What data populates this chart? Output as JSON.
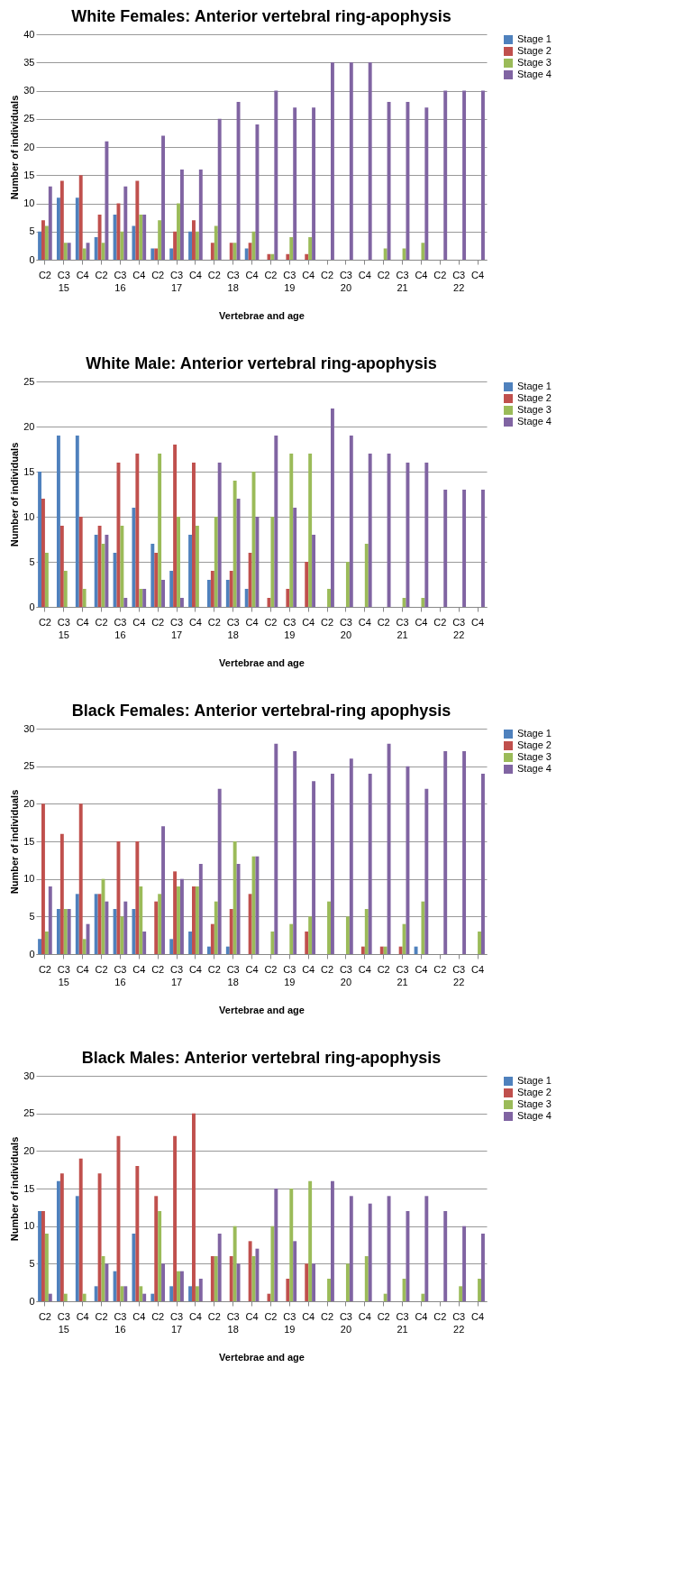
{
  "chart_data": [
    {
      "type": "bar",
      "title": "White Females: Anterior vertebral ring-apophysis",
      "xlabel": "Vertebrae and age",
      "ylabel": "Number of individuals",
      "categories": [
        "C2",
        "C3",
        "C4",
        "C2",
        "C3",
        "C4",
        "C2",
        "C3",
        "C4",
        "C2",
        "C3",
        "C4",
        "C2",
        "C3",
        "C4",
        "C2",
        "C3",
        "C4",
        "C2",
        "C3",
        "C4",
        "C2",
        "C3",
        "C4"
      ],
      "annotations": [
        "15",
        "16",
        "17",
        "18",
        "19",
        "20",
        "21",
        "22"
      ],
      "ylim": [
        0,
        40
      ],
      "yticks": [
        0,
        5,
        10,
        15,
        20,
        25,
        30,
        35,
        40
      ],
      "grid": "y",
      "legend": "right",
      "series": [
        {
          "name": "Stage 1",
          "color": "#4f81bd",
          "values": [
            5,
            11,
            11,
            4,
            8,
            6,
            2,
            2,
            5,
            null,
            null,
            2,
            null,
            null,
            null,
            null,
            null,
            null,
            null,
            null,
            null,
            null,
            null,
            null
          ]
        },
        {
          "name": "Stage 2",
          "color": "#c0504d",
          "values": [
            7,
            14,
            15,
            8,
            10,
            14,
            2,
            5,
            7,
            3,
            3,
            3,
            1,
            1,
            1,
            null,
            null,
            null,
            null,
            null,
            null,
            null,
            null,
            null
          ]
        },
        {
          "name": "Stage 3",
          "color": "#9bbb59",
          "values": [
            6,
            3,
            2,
            3,
            5,
            8,
            7,
            10,
            5,
            6,
            3,
            5,
            1,
            4,
            4,
            null,
            null,
            null,
            2,
            2,
            3,
            null,
            null,
            null
          ]
        },
        {
          "name": "Stage 4",
          "color": "#8064a2",
          "values": [
            13,
            3,
            3,
            21,
            13,
            8,
            22,
            16,
            16,
            25,
            28,
            24,
            30,
            27,
            27,
            35,
            35,
            35,
            28,
            28,
            27,
            30,
            30,
            30
          ]
        }
      ]
    },
    {
      "type": "bar",
      "title": "White Male: Anterior vertebral ring-apophysis",
      "xlabel": "Vertebrae and age",
      "ylabel": "Number of individuals",
      "categories": [
        "C2",
        "C3",
        "C4",
        "C2",
        "C3",
        "C4",
        "C2",
        "C3",
        "C4",
        "C2",
        "C3",
        "C4",
        "C2",
        "C3",
        "C4",
        "C2",
        "C3",
        "C4",
        "C2",
        "C3",
        "C4",
        "C2",
        "C3",
        "C4"
      ],
      "annotations": [
        "15",
        "16",
        "17",
        "18",
        "19",
        "20",
        "21",
        "22"
      ],
      "ylim": [
        0,
        25
      ],
      "yticks": [
        0,
        5,
        10,
        15,
        20,
        25
      ],
      "grid": "y",
      "legend": "right",
      "series": [
        {
          "name": "Stage 1",
          "color": "#4f81bd",
          "values": [
            15,
            19,
            19,
            8,
            6,
            11,
            7,
            4,
            8,
            3,
            3,
            2,
            null,
            null,
            null,
            null,
            null,
            null,
            null,
            null,
            null,
            null,
            null,
            null
          ]
        },
        {
          "name": "Stage 2",
          "color": "#c0504d",
          "values": [
            12,
            9,
            10,
            9,
            16,
            17,
            6,
            18,
            16,
            4,
            4,
            6,
            1,
            2,
            5,
            null,
            null,
            null,
            null,
            null,
            null,
            null,
            null,
            null
          ]
        },
        {
          "name": "Stage 3",
          "color": "#9bbb59",
          "values": [
            6,
            4,
            2,
            7,
            9,
            2,
            17,
            10,
            9,
            10,
            14,
            15,
            10,
            17,
            17,
            2,
            5,
            7,
            null,
            1,
            1,
            null,
            null,
            null
          ]
        },
        {
          "name": "Stage 4",
          "color": "#8064a2",
          "values": [
            null,
            null,
            null,
            8,
            1,
            2,
            3,
            1,
            null,
            16,
            12,
            10,
            19,
            11,
            8,
            22,
            19,
            17,
            17,
            16,
            16,
            13,
            13,
            13
          ]
        }
      ]
    },
    {
      "type": "bar",
      "title": "Black Females: Anterior vertebral-ring apophysis",
      "xlabel": "Vertebrae and age",
      "ylabel": "Number of individuals",
      "categories": [
        "C2",
        "C3",
        "C4",
        "C2",
        "C3",
        "C4",
        "C2",
        "C3",
        "C4",
        "C2",
        "C3",
        "C4",
        "C2",
        "C3",
        "C4",
        "C2",
        "C3",
        "C4",
        "C2",
        "C3",
        "C4",
        "C2",
        "C3",
        "C4"
      ],
      "annotations": [
        "15",
        "16",
        "17",
        "18",
        "19",
        "20",
        "21",
        "22"
      ],
      "ylim": [
        0,
        30
      ],
      "yticks": [
        0,
        5,
        10,
        15,
        20,
        25,
        30
      ],
      "grid": "y",
      "legend": "right",
      "series": [
        {
          "name": "Stage 1",
          "color": "#4f81bd",
          "values": [
            2,
            6,
            8,
            8,
            6,
            6,
            null,
            2,
            3,
            1,
            1,
            null,
            null,
            null,
            null,
            null,
            null,
            null,
            null,
            null,
            1,
            null,
            null,
            null
          ]
        },
        {
          "name": "Stage 2",
          "color": "#c0504d",
          "values": [
            20,
            16,
            20,
            8,
            15,
            15,
            7,
            11,
            9,
            4,
            6,
            8,
            null,
            null,
            3,
            null,
            null,
            1,
            1,
            1,
            null,
            null,
            null,
            null
          ]
        },
        {
          "name": "Stage 3",
          "color": "#9bbb59",
          "values": [
            3,
            6,
            2,
            10,
            5,
            9,
            8,
            9,
            9,
            7,
            15,
            13,
            3,
            4,
            5,
            7,
            5,
            6,
            1,
            4,
            7,
            null,
            null,
            3
          ]
        },
        {
          "name": "Stage 4",
          "color": "#8064a2",
          "values": [
            9,
            6,
            4,
            7,
            7,
            3,
            17,
            10,
            12,
            22,
            12,
            13,
            28,
            27,
            23,
            24,
            26,
            24,
            28,
            25,
            22,
            27,
            27,
            24
          ]
        }
      ]
    },
    {
      "type": "bar",
      "title": "Black Males: Anterior vertebral ring-apophysis",
      "xlabel": "Vertebrae and age",
      "ylabel": "Number of individuals",
      "categories": [
        "C2",
        "C3",
        "C4",
        "C2",
        "C3",
        "C4",
        "C2",
        "C3",
        "C4",
        "C2",
        "C3",
        "C4",
        "C2",
        "C3",
        "C4",
        "C2",
        "C3",
        "C4",
        "C2",
        "C3",
        "C4",
        "C2",
        "C3",
        "C4"
      ],
      "annotations": [
        "15",
        "16",
        "17",
        "18",
        "19",
        "20",
        "21",
        "22"
      ],
      "ylim": [
        0,
        30
      ],
      "yticks": [
        0,
        5,
        10,
        15,
        20,
        25,
        30
      ],
      "grid": "y",
      "legend": "right",
      "series": [
        {
          "name": "Stage 1",
          "color": "#4f81bd",
          "values": [
            12,
            16,
            14,
            2,
            4,
            9,
            1,
            2,
            2,
            null,
            null,
            null,
            null,
            null,
            null,
            null,
            null,
            null,
            null,
            null,
            null,
            null,
            null,
            null
          ]
        },
        {
          "name": "Stage 2",
          "color": "#c0504d",
          "values": [
            12,
            17,
            19,
            17,
            22,
            18,
            14,
            22,
            25,
            6,
            6,
            8,
            1,
            3,
            5,
            null,
            null,
            null,
            null,
            null,
            null,
            null,
            null,
            null
          ]
        },
        {
          "name": "Stage 3",
          "color": "#9bbb59",
          "values": [
            9,
            1,
            1,
            6,
            2,
            2,
            12,
            4,
            2,
            6,
            10,
            6,
            10,
            15,
            16,
            3,
            5,
            6,
            1,
            3,
            1,
            null,
            2,
            3
          ]
        },
        {
          "name": "Stage 4",
          "color": "#8064a2",
          "values": [
            1,
            null,
            null,
            5,
            2,
            1,
            5,
            4,
            3,
            9,
            5,
            7,
            15,
            8,
            5,
            16,
            14,
            13,
            14,
            12,
            14,
            12,
            10,
            9
          ]
        }
      ]
    }
  ]
}
